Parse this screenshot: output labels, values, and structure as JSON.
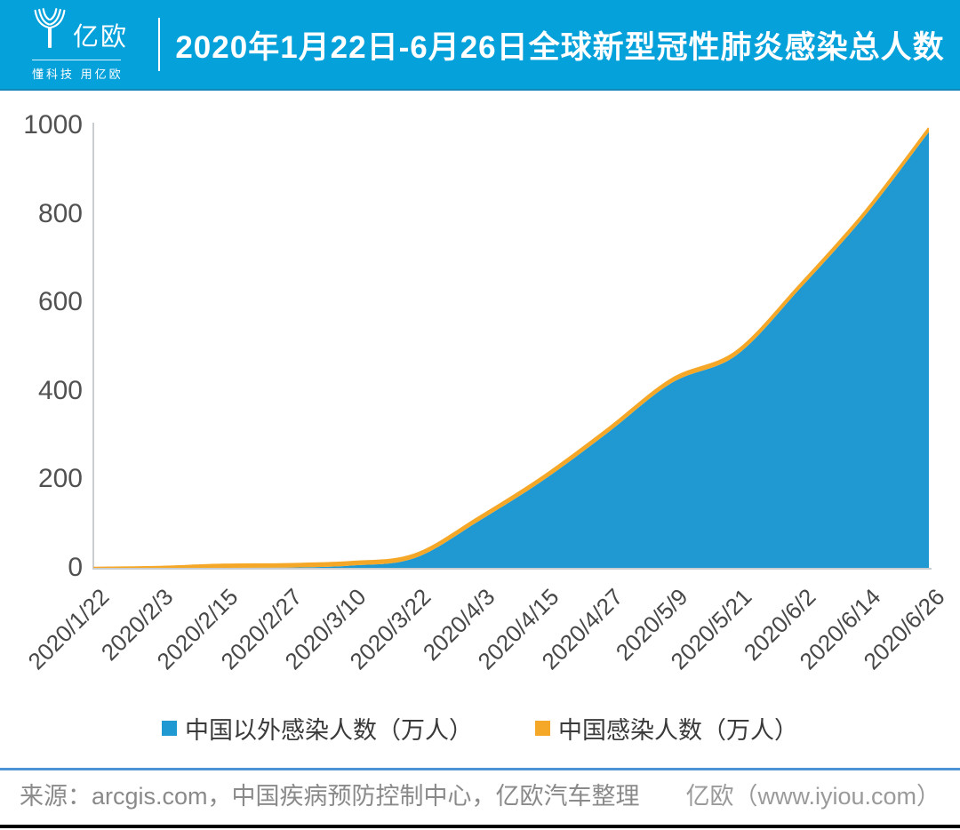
{
  "header": {
    "logo": {
      "name": "亿欧",
      "tagline": "懂科技 用亿欧"
    },
    "title": "2020年1月22日-6月26日全球新型冠性肺炎感染总人数"
  },
  "chart_data": {
    "type": "area",
    "stacked": true,
    "title": "2020年1月22日-6月26日全球新型冠性肺炎感染总人数",
    "categories": [
      "2020/1/22",
      "2020/2/3",
      "2020/2/15",
      "2020/2/27",
      "2020/3/10",
      "2020/3/22",
      "2020/4/3",
      "2020/4/15",
      "2020/4/27",
      "2020/5/9",
      "2020/5/21",
      "2020/6/2",
      "2020/6/14",
      "2020/6/26"
    ],
    "series": [
      {
        "name": "中国以外感染人数（万人）",
        "color": "#2099d2",
        "values": [
          0,
          0.02,
          0.07,
          0.44,
          5,
          22,
          106,
          198,
          305,
          418,
          480,
          632,
          795,
          985
        ]
      },
      {
        "name": "中国感染人数（万人）",
        "color": "#f5a728",
        "values": [
          0.06,
          1.75,
          6.85,
          7.87,
          8.1,
          8.15,
          8.26,
          8.34,
          8.4,
          8.43,
          8.43,
          8.44,
          8.45,
          8.5
        ]
      }
    ],
    "xlabel": "",
    "ylabel": "",
    "ylim": [
      0,
      1000
    ],
    "yticks": [
      0,
      200,
      400,
      600,
      800,
      1000
    ],
    "grid": false,
    "legend_position": "bottom"
  },
  "footer": {
    "source": "来源：arcgis.com，中国疾病预防控制中心，亿欧汽车整理",
    "credit": "亿欧（www.iyiou.com）"
  },
  "colors": {
    "header_bg": "#05a1da",
    "area_blue": "#2099d2",
    "area_orange": "#f5a728",
    "axis": "#c9cdd0",
    "footer_line": "#4d94d6"
  }
}
